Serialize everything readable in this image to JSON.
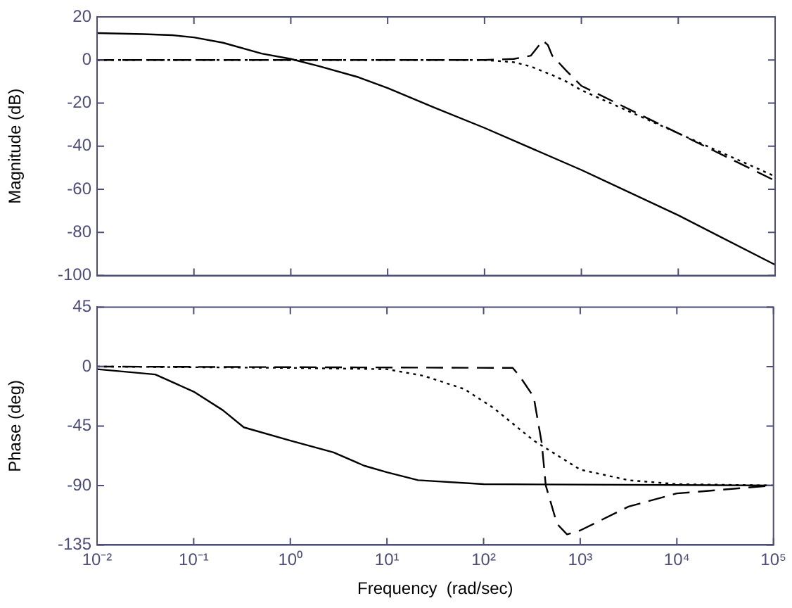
{
  "chart_data": [
    {
      "type": "line",
      "ylabel": "Magnitude (dB)",
      "log": "x",
      "grid": false,
      "tick_labels": "y",
      "xlim": [
        0.01,
        100000
      ],
      "xticks": [
        {
          "value": 0.01,
          "label": null
        },
        {
          "value": 0.1,
          "label": null
        },
        {
          "value": 1,
          "label": null
        },
        {
          "value": 10,
          "label": null
        },
        {
          "value": 100,
          "label": null
        },
        {
          "value": 1000,
          "label": null
        },
        {
          "value": 10000,
          "label": null
        },
        {
          "value": 100000,
          "label": null
        }
      ],
      "ylim": [
        -100,
        20
      ],
      "yticks": [
        -100,
        -80,
        -60,
        -40,
        -20,
        0,
        20
      ],
      "series": [
        {
          "color": "#000000",
          "line_style": "solid",
          "x": [
            0.01,
            0.03,
            0.06,
            0.1,
            0.2,
            0.5,
            1,
            2,
            5,
            10,
            30,
            100,
            1000,
            10000,
            100000
          ],
          "values": [
            12.5,
            12,
            11.5,
            10.5,
            8,
            3,
            0.5,
            -3,
            -8,
            -13,
            -22,
            -31.5,
            -51,
            -72,
            -95
          ]
        },
        {
          "color": "#000000",
          "line_style": "dashed",
          "x": [
            0.01,
            100,
            200,
            300,
            400,
            450,
            500,
            700,
            1000,
            10000,
            100000
          ],
          "values": [
            0,
            0,
            0.5,
            2,
            9,
            7,
            2,
            -5,
            -12,
            -34,
            -56
          ]
        },
        {
          "color": "#000000",
          "line_style": "dotted",
          "x": [
            0.01,
            100,
            200,
            300,
            500,
            700,
            1000,
            10000,
            100000
          ],
          "values": [
            0,
            0,
            -1,
            -3,
            -7,
            -10,
            -14,
            -34,
            -54
          ]
        }
      ]
    },
    {
      "type": "line",
      "ylabel": "Phase (deg)",
      "xlabel": "Frequency  (rad/sec)",
      "log": "x",
      "grid": false,
      "xlim": [
        0.01,
        100000
      ],
      "xticks": [
        {
          "value": 0.01,
          "label": "10⁻²"
        },
        {
          "value": 0.1,
          "label": "10⁻¹"
        },
        {
          "value": 1,
          "label": "10⁰"
        },
        {
          "value": 10,
          "label": "10¹"
        },
        {
          "value": 100,
          "label": "10²"
        },
        {
          "value": 1000,
          "label": "10³"
        },
        {
          "value": 10000,
          "label": "10⁴"
        },
        {
          "value": 100000,
          "label": "10⁵"
        }
      ],
      "ylim": [
        -135,
        45
      ],
      "yticks": [
        -135,
        -90,
        -45,
        0,
        45
      ],
      "series": [
        {
          "color": "#000000",
          "line_style": "solid",
          "x": [
            0.01,
            0.04,
            0.1,
            0.2,
            0.33,
            1,
            2.8,
            5.8,
            10,
            21,
            100,
            100000
          ],
          "values": [
            -2,
            -6,
            -19,
            -33,
            -46,
            -56,
            -65,
            -75,
            -80,
            -86,
            -89,
            -90
          ]
        },
        {
          "color": "#000000",
          "line_style": "dashed",
          "x": [
            0.01,
            200,
            235,
            330,
            400,
            440,
            575,
            730,
            1000,
            3162,
            10000,
            100000
          ],
          "values": [
            0,
            -1,
            -7,
            -23,
            -58,
            -90,
            -119,
            -127,
            -124,
            -106,
            -96,
            -90
          ]
        },
        {
          "color": "#000000",
          "line_style": "dotted",
          "x": [
            0.01,
            1,
            10,
            24,
            63,
            125,
            330,
            1000,
            3162,
            10000,
            100000
          ],
          "values": [
            0,
            -1,
            -2,
            -7,
            -17,
            -31,
            -56,
            -78,
            -86,
            -89,
            -90
          ]
        }
      ]
    }
  ]
}
